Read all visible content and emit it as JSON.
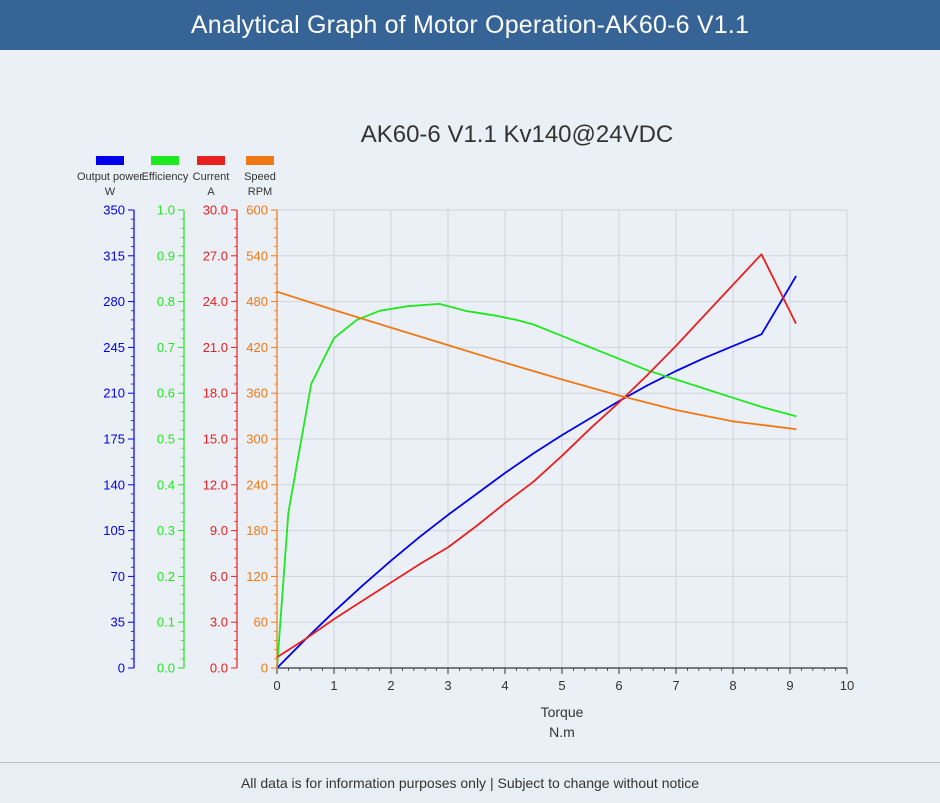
{
  "header": {
    "title": "Analytical Graph of Motor Operation-AK60-6 V1.1"
  },
  "footer": {
    "text": "All data is for information purposes only | Subject to change without notice"
  },
  "chart_data": {
    "type": "line",
    "title": "AK60-6 V1.1 Kv140@24VDC",
    "xlabel": "Torque",
    "xunit": "N.m",
    "xlim": [
      0,
      10
    ],
    "xticks": [
      0,
      1,
      2,
      3,
      4,
      5,
      6,
      7,
      8,
      9,
      10
    ],
    "grid": true,
    "legend_position": "top-left",
    "series": [
      {
        "name": "Output power",
        "unit": "W",
        "color": "#0000ee",
        "ylim": [
          0,
          350
        ],
        "yticks": [
          "0",
          "35",
          "70",
          "105",
          "140",
          "175",
          "210",
          "245",
          "280",
          "315",
          "350"
        ],
        "x": [
          0,
          0.5,
          1,
          1.5,
          2,
          2.5,
          3,
          3.5,
          4,
          4.5,
          5,
          5.5,
          6,
          6.5,
          7,
          7.5,
          8,
          8.5,
          9.1
        ],
        "y": [
          0,
          22,
          43,
          63,
          82,
          100,
          117,
          133,
          149,
          164,
          178,
          191,
          204,
          216,
          227,
          237,
          246,
          255,
          299
        ]
      },
      {
        "name": "Efficiency",
        "unit": "",
        "color": "#1ee81e",
        "ylim": [
          0,
          1.0
        ],
        "yticks": [
          "0.0",
          "0.1",
          "0.2",
          "0.3",
          "0.4",
          "0.5",
          "0.6",
          "0.7",
          "0.8",
          "0.9",
          "1.0"
        ],
        "x": [
          0,
          0.2,
          0.6,
          1.0,
          1.4,
          1.8,
          2.3,
          2.85,
          3.3,
          3.8,
          4.2,
          4.5,
          5,
          5.5,
          6,
          6.5,
          7,
          7.5,
          8,
          8.5,
          9.1
        ],
        "y": [
          0.0,
          0.34,
          0.62,
          0.72,
          0.76,
          0.78,
          0.79,
          0.795,
          0.78,
          0.77,
          0.76,
          0.75,
          0.725,
          0.7,
          0.675,
          0.65,
          0.63,
          0.61,
          0.59,
          0.57,
          0.55
        ]
      },
      {
        "name": "Current",
        "unit": "A",
        "color": "#e82020",
        "ylim": [
          0,
          30.0
        ],
        "yticks": [
          "0.0",
          "3.0",
          "6.0",
          "9.0",
          "12.0",
          "15.0",
          "18.0",
          "21.0",
          "24.0",
          "27.0",
          "30.0"
        ],
        "x": [
          0,
          0.5,
          1,
          1.5,
          2,
          2.5,
          3,
          3.5,
          4,
          4.5,
          5,
          5.5,
          6,
          6.5,
          7,
          7.5,
          8,
          8.5,
          9.1
        ],
        "y": [
          0.7,
          1.9,
          3.2,
          4.4,
          5.6,
          6.8,
          7.9,
          9.3,
          10.8,
          12.2,
          13.9,
          15.7,
          17.4,
          19.2,
          21.1,
          23.1,
          25.1,
          27.1,
          22.6
        ]
      },
      {
        "name": "Speed",
        "unit": "RPM",
        "color": "#f07814",
        "ylim": [
          0,
          600
        ],
        "yticks": [
          "0",
          "60",
          "120",
          "180",
          "240",
          "300",
          "360",
          "420",
          "480",
          "540",
          "600"
        ],
        "x": [
          0,
          1,
          2,
          3,
          4,
          5,
          6,
          7,
          8,
          9.1
        ],
        "y": [
          493,
          469,
          446,
          423,
          400,
          378,
          357,
          338,
          323,
          313
        ]
      }
    ]
  }
}
